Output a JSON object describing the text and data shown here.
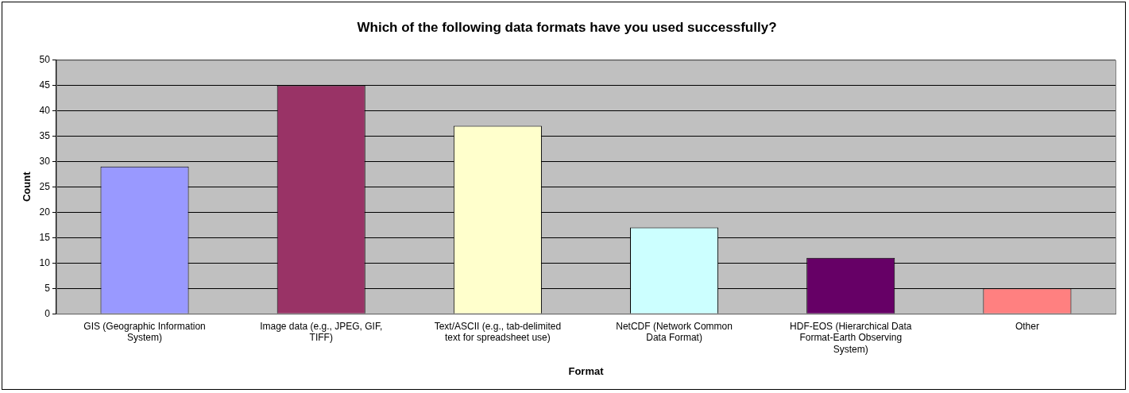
{
  "chart_data": {
    "type": "bar",
    "title": "Which of the following data formats have you used successfully?",
    "xlabel": "Format",
    "ylabel": "Count",
    "categories": [
      "GIS (Geographic Information System)",
      "Image data (e.g., JPEG, GIF, TIFF)",
      "Text/ASCII (e.g., tab-delimited text for spreadsheet use)",
      "NetCDF (Network Common Data Format)",
      "HDF-EOS (Hierarchical Data Format-Earth Observing System)",
      "Other"
    ],
    "values": [
      29,
      45,
      37,
      17,
      11,
      5
    ],
    "colors": [
      "#9999ff",
      "#993366",
      "#ffffcc",
      "#ccffff",
      "#660066",
      "#ff8080"
    ],
    "ylim": [
      0,
      50
    ],
    "yticks": [
      0,
      5,
      10,
      15,
      20,
      25,
      30,
      35,
      40,
      45,
      50
    ],
    "grid": "y"
  }
}
